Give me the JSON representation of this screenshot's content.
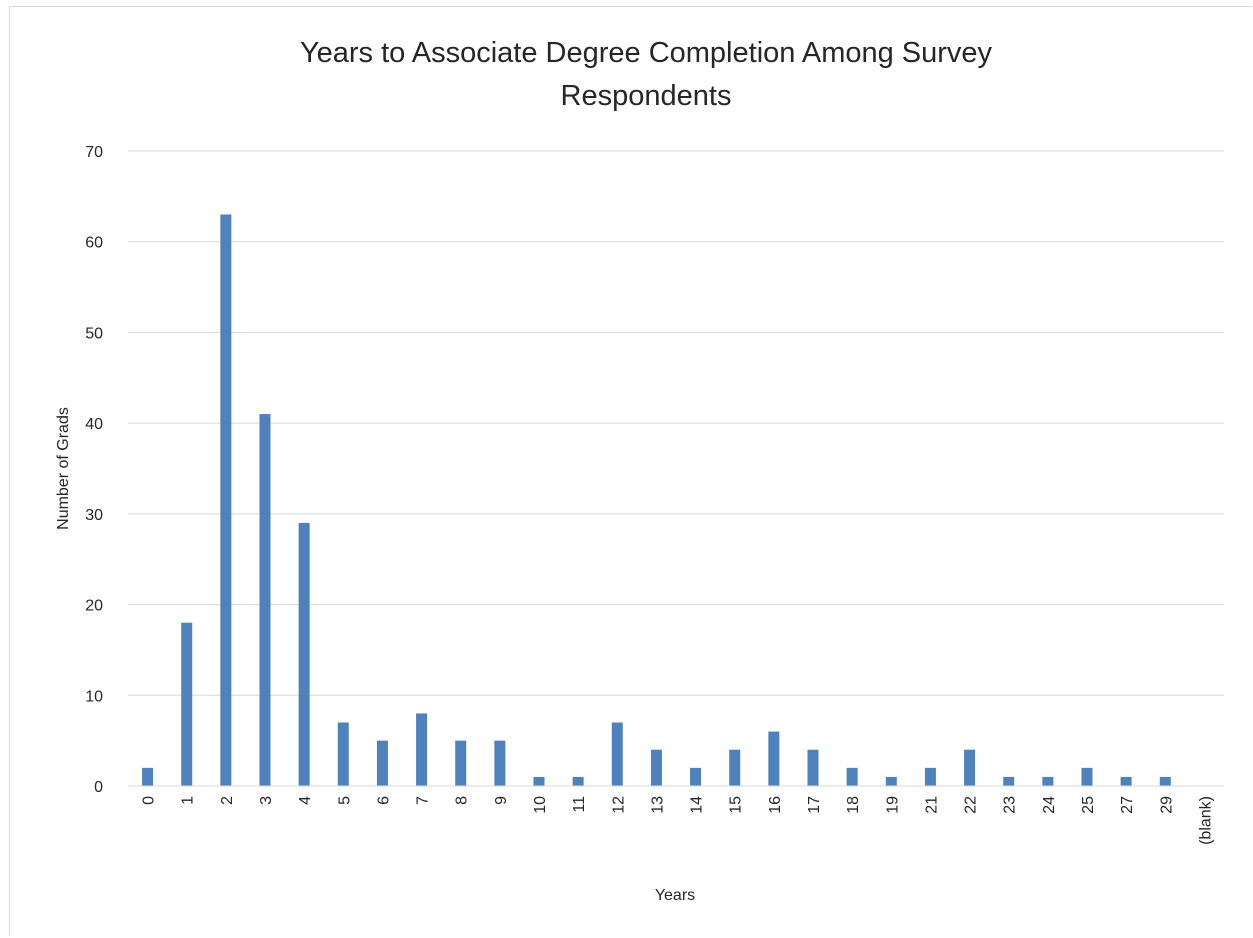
{
  "chart_data": {
    "type": "bar",
    "title": "Years to Associate Degree Completion Among Survey Respondents",
    "title_lines": [
      "Years to Associate Degree Completion Among Survey",
      "Respondents"
    ],
    "xlabel": "Years",
    "ylabel": "Number of Grads",
    "categories": [
      "0",
      "1",
      "2",
      "3",
      "4",
      "5",
      "6",
      "7",
      "8",
      "9",
      "10",
      "11",
      "12",
      "13",
      "14",
      "15",
      "16",
      "17",
      "18",
      "19",
      "21",
      "22",
      "23",
      "24",
      "25",
      "27",
      "29",
      "(blank)"
    ],
    "values": [
      2,
      18,
      63,
      41,
      29,
      7,
      5,
      8,
      5,
      5,
      1,
      1,
      7,
      4,
      2,
      4,
      6,
      4,
      2,
      1,
      2,
      4,
      1,
      1,
      2,
      1,
      1,
      null
    ],
    "ylim": [
      0,
      70
    ],
    "yticks": [
      0,
      10,
      20,
      30,
      40,
      50,
      60,
      70
    ],
    "grid": true,
    "legend": "none",
    "bar_color": "#4f81bd",
    "grid_color": "#d9d9d9"
  }
}
